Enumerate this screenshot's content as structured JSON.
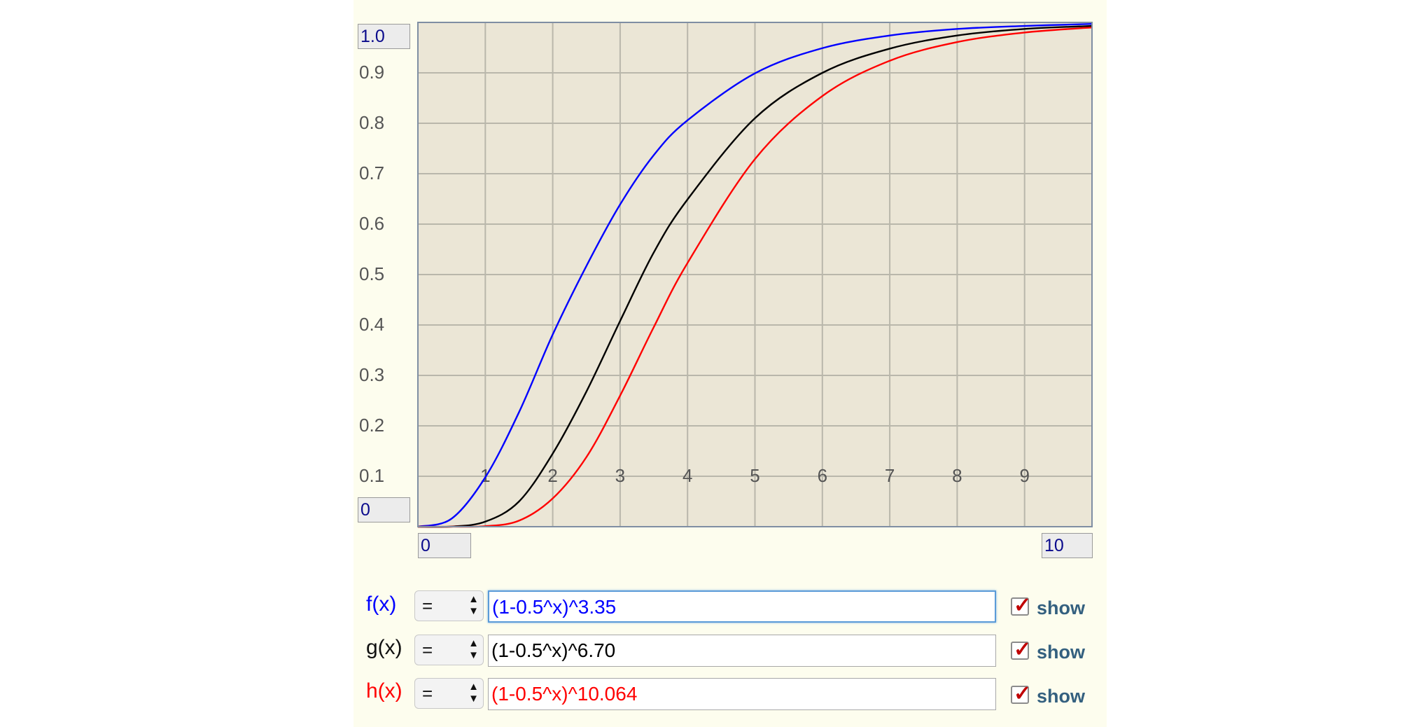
{
  "graph": {
    "y_max_input": "1.0",
    "y_min_input": "0",
    "x_min_input": "0",
    "x_max_input": "10",
    "background_color": "#ebe6d6",
    "grid_color": "#b9b7ab"
  },
  "chart_data": {
    "type": "line",
    "xlim": [
      0,
      10
    ],
    "ylim": [
      0,
      1.0
    ],
    "grid": true,
    "x_ticks": [
      "1",
      "2",
      "3",
      "4",
      "5",
      "6",
      "7",
      "8",
      "9"
    ],
    "y_ticks": [
      "0.9",
      "0.8",
      "0.7",
      "0.6",
      "0.5",
      "0.4",
      "0.3",
      "0.2",
      "0.1"
    ],
    "series": [
      {
        "label": "f(x)",
        "color": "#0000ff",
        "x": [
          0,
          0.5,
          1,
          1.5,
          2,
          2.5,
          3,
          3.5,
          4,
          5,
          6,
          7,
          8,
          9,
          10
        ],
        "y": [
          0,
          0.016,
          0.098,
          0.227,
          0.381,
          0.517,
          0.639,
          0.737,
          0.806,
          0.899,
          0.949,
          0.974,
          0.987,
          0.993,
          0.997
        ]
      },
      {
        "label": "g(x)",
        "color": "#000000",
        "x": [
          0,
          0.5,
          1,
          1.5,
          2,
          2.5,
          3,
          3.5,
          4,
          5,
          6,
          7,
          8,
          9,
          10
        ],
        "y": [
          0,
          0.0003,
          0.01,
          0.05,
          0.145,
          0.268,
          0.408,
          0.544,
          0.649,
          0.81,
          0.9,
          0.948,
          0.974,
          0.987,
          0.993
        ]
      },
      {
        "label": "h(x)",
        "color": "#ff0000",
        "x": [
          0,
          0.5,
          1,
          1.5,
          2,
          2.5,
          3,
          3.5,
          4,
          5,
          6,
          7,
          8,
          9,
          10
        ],
        "y": [
          0,
          1e-05,
          0.001,
          0.012,
          0.056,
          0.138,
          0.26,
          0.396,
          0.523,
          0.729,
          0.854,
          0.924,
          0.961,
          0.98,
          0.99
        ]
      }
    ]
  },
  "functions": [
    {
      "label": "f(x)",
      "operator": "=",
      "expression": "(1-0.5^x)^3.35",
      "show_label": "show",
      "color": "#0000ff",
      "checked": true
    },
    {
      "label": "g(x)",
      "operator": "=",
      "expression": "(1-0.5^x)^6.70",
      "show_label": "show",
      "color": "#000000",
      "checked": true
    },
    {
      "label": "h(x)",
      "operator": "=",
      "expression": "(1-0.5^x)^10.064",
      "show_label": "show",
      "color": "#ff0000",
      "checked": true
    }
  ]
}
